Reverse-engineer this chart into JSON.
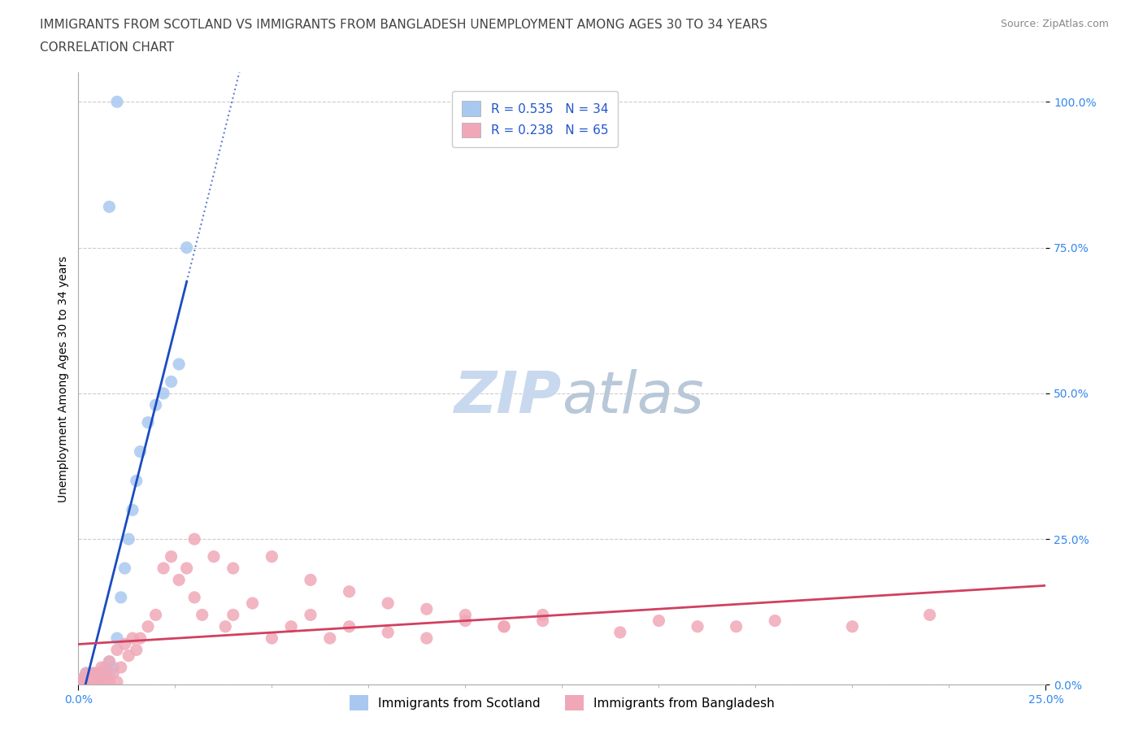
{
  "title_line1": "IMMIGRANTS FROM SCOTLAND VS IMMIGRANTS FROM BANGLADESH UNEMPLOYMENT AMONG AGES 30 TO 34 YEARS",
  "title_line2": "CORRELATION CHART",
  "source": "Source: ZipAtlas.com",
  "ylabel_label": "Unemployment Among Ages 30 to 34 years",
  "scotland_R": 0.535,
  "scotland_N": 34,
  "bangladesh_R": 0.238,
  "bangladesh_N": 65,
  "xlim": [
    0,
    0.25
  ],
  "ylim": [
    0,
    1.05
  ],
  "yticks": [
    0.0,
    0.25,
    0.5,
    0.75,
    1.0
  ],
  "ytick_labels": [
    "0.0%",
    "25.0%",
    "50.0%",
    "75.0%",
    "100.0%"
  ],
  "xtick_labels": [
    "0.0%",
    "25.0%"
  ],
  "scotland_color": "#a8c8f0",
  "scotland_line_color": "#1a4cc0",
  "bangladesh_color": "#f0a8b8",
  "bangladesh_line_color": "#d04060",
  "background_color": "#ffffff",
  "grid_color": "#cccccc",
  "watermark_color": "#c8d8ee",
  "title_fontsize": 11,
  "legend_fontsize": 11,
  "axis_label_fontsize": 10,
  "tick_fontsize": 10,
  "source_fontsize": 9,
  "sc_x": [
    0.001,
    0.001,
    0.002,
    0.002,
    0.002,
    0.003,
    0.003,
    0.003,
    0.004,
    0.004,
    0.004,
    0.005,
    0.005,
    0.006,
    0.006,
    0.007,
    0.008,
    0.008,
    0.009,
    0.01,
    0.011,
    0.012,
    0.013,
    0.014,
    0.015,
    0.016,
    0.018,
    0.02,
    0.022,
    0.024,
    0.026,
    0.028,
    0.01,
    0.008
  ],
  "sc_y": [
    0.005,
    0.01,
    0.005,
    0.01,
    0.02,
    0.005,
    0.01,
    0.02,
    0.005,
    0.01,
    0.02,
    0.005,
    0.01,
    0.005,
    0.02,
    0.03,
    0.02,
    0.04,
    0.03,
    0.08,
    0.15,
    0.2,
    0.25,
    0.3,
    0.35,
    0.4,
    0.45,
    0.48,
    0.5,
    0.52,
    0.55,
    0.75,
    1.0,
    0.82
  ],
  "bd_x": [
    0.001,
    0.001,
    0.002,
    0.002,
    0.003,
    0.003,
    0.004,
    0.004,
    0.005,
    0.005,
    0.005,
    0.006,
    0.006,
    0.007,
    0.007,
    0.008,
    0.008,
    0.009,
    0.01,
    0.01,
    0.011,
    0.012,
    0.013,
    0.014,
    0.015,
    0.016,
    0.018,
    0.02,
    0.022,
    0.024,
    0.026,
    0.028,
    0.03,
    0.032,
    0.035,
    0.038,
    0.04,
    0.045,
    0.05,
    0.055,
    0.06,
    0.065,
    0.07,
    0.08,
    0.09,
    0.1,
    0.11,
    0.12,
    0.14,
    0.16,
    0.18,
    0.2,
    0.22,
    0.03,
    0.04,
    0.05,
    0.06,
    0.07,
    0.08,
    0.09,
    0.1,
    0.11,
    0.12,
    0.15,
    0.17
  ],
  "bd_y": [
    0.005,
    0.01,
    0.005,
    0.02,
    0.005,
    0.01,
    0.005,
    0.02,
    0.005,
    0.01,
    0.02,
    0.005,
    0.03,
    0.005,
    0.02,
    0.005,
    0.04,
    0.02,
    0.005,
    0.06,
    0.03,
    0.07,
    0.05,
    0.08,
    0.06,
    0.08,
    0.1,
    0.12,
    0.2,
    0.22,
    0.18,
    0.2,
    0.15,
    0.12,
    0.22,
    0.1,
    0.12,
    0.14,
    0.08,
    0.1,
    0.12,
    0.08,
    0.1,
    0.09,
    0.08,
    0.12,
    0.1,
    0.11,
    0.09,
    0.1,
    0.11,
    0.1,
    0.12,
    0.25,
    0.2,
    0.22,
    0.18,
    0.16,
    0.14,
    0.13,
    0.11,
    0.1,
    0.12,
    0.11,
    0.1
  ]
}
